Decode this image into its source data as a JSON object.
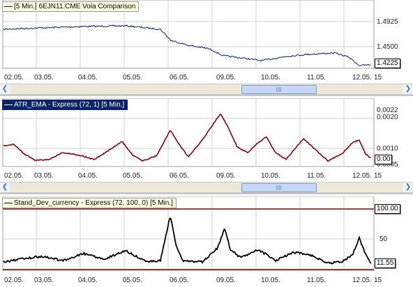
{
  "panes": [
    {
      "legend": "[5 Min.] 6EJN11.CME Vola Comparison",
      "line_color": "#001a66",
      "y_labels": [
        "1.4925",
        "1.4500"
      ],
      "current_value": "1.4225",
      "x_labels": [
        "02.05.",
        "03.05.",
        "04.05.",
        "05.05.",
        "06.05.",
        "09.05.",
        "10.05.",
        "11.05.",
        "12.05.",
        "15"
      ]
    },
    {
      "legend": "ATR_EMA - Express  (72, 1) [5 Min.]",
      "line_color": "#8b0000",
      "y_labels": [
        "0.0022",
        "0.0020",
        "0.0010",
        "0.0005"
      ],
      "current_value": "0.00",
      "x_labels": [
        "02.05.",
        "03.05.",
        "04.05.",
        "05.05.",
        "06.05.",
        "09.05.",
        "10.05.",
        "11.05.",
        "12.05.",
        "15"
      ]
    },
    {
      "legend": "Stand_Dev_currency - Express  (72, 100, 0) [5 Min.]",
      "line_color": "#000000",
      "band_color": "#8b0000",
      "y_labels": [
        "50"
      ],
      "upper_value": "100.00",
      "current_value": "11.55",
      "x_labels": [
        "02.05.",
        "03.05.",
        "04.05.",
        "05.05.",
        "06.05.",
        "09.05.",
        "10.05.",
        "11.05.",
        "12.05.",
        "15"
      ]
    }
  ],
  "scrollbar": {
    "left_icon": "chevron-left-icon",
    "right_icon": "chevron-right-icon"
  }
}
